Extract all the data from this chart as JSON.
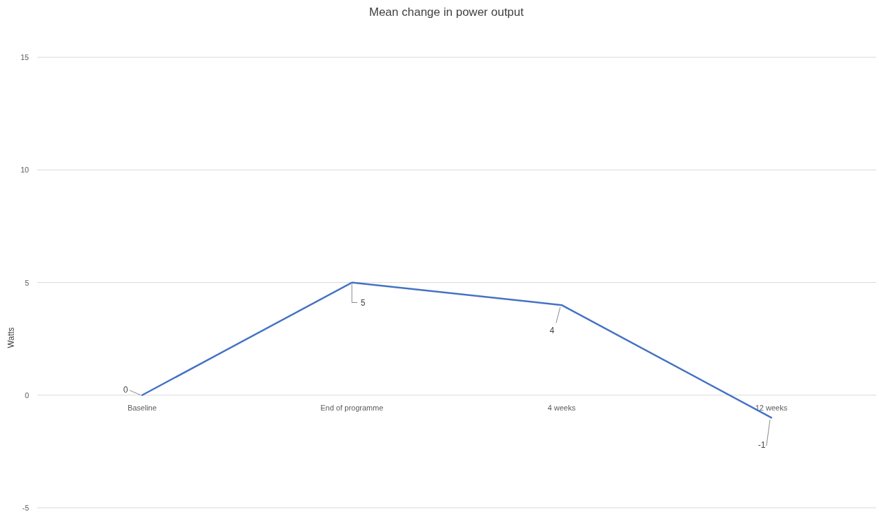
{
  "chart_data": {
    "type": "line",
    "title": "Mean change in power output",
    "ylabel": "Watts",
    "categories": [
      "Baseline",
      "End of programme",
      "4 weeks",
      "12 weeks"
    ],
    "series": [
      {
        "color": "#4472c4",
        "values": [
          0,
          5,
          4,
          -1
        ]
      }
    ],
    "ylim": [
      -5,
      15
    ],
    "yticks": [
      -5,
      0,
      5,
      10,
      15
    ],
    "grid": "y",
    "marker": "none",
    "line_style": "solid",
    "data_labels": true
  }
}
